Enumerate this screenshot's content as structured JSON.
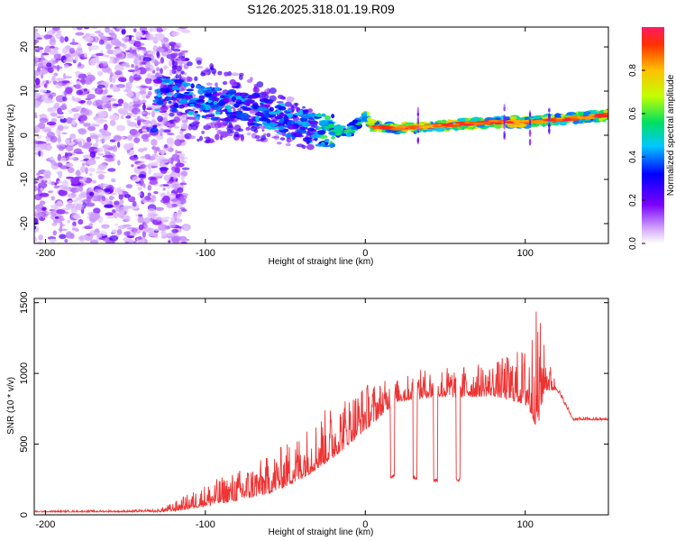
{
  "title": "S126.2025.318.01.19.R09",
  "colors": {
    "snr_line": "#ee3333",
    "frame": "#000000"
  },
  "chart_data": [
    {
      "type": "heatmap",
      "xlabel": "Height of straight line (km)",
      "ylabel": "Frequency (Hz)",
      "xlim": [
        -207,
        152
      ],
      "ylim": [
        -24.5,
        24.5
      ],
      "xticks": [
        -200,
        -100,
        0,
        100
      ],
      "yticks": [
        -20,
        -10,
        0,
        10,
        20
      ],
      "colorbar": {
        "label": "Normalized spectral amplitude",
        "range": [
          0,
          1
        ],
        "ticks": [
          "0.0",
          "0.2",
          "0.4",
          "0.6",
          "0.8"
        ],
        "tick_values": [
          0.0,
          0.2,
          0.4,
          0.6,
          0.8
        ]
      },
      "ridge": [
        {
          "x": -130,
          "y": 11
        },
        {
          "x": -110,
          "y": 8
        },
        {
          "x": -90,
          "y": 7
        },
        {
          "x": -70,
          "y": 6
        },
        {
          "x": -55,
          "y": 4
        },
        {
          "x": -40,
          "y": 2
        },
        {
          "x": -25,
          "y": 1
        },
        {
          "x": -10,
          "y": 1
        },
        {
          "x": 0,
          "y": 4
        },
        {
          "x": 5,
          "y": 2
        },
        {
          "x": 20,
          "y": 1.5
        },
        {
          "x": 40,
          "y": 2
        },
        {
          "x": 60,
          "y": 2.5
        },
        {
          "x": 80,
          "y": 3
        },
        {
          "x": 100,
          "y": 3
        },
        {
          "x": 120,
          "y": 3.5
        },
        {
          "x": 150,
          "y": 4.5
        }
      ]
    },
    {
      "type": "line",
      "xlabel": "Height of straight line (km)",
      "ylabel": "SNR (10 * v/v)",
      "xlim": [
        -207,
        152
      ],
      "ylim": [
        0,
        1530
      ],
      "xticks": [
        -200,
        -100,
        0,
        100
      ],
      "yticks": [
        0,
        500,
        1000,
        1500
      ],
      "envelope": {
        "x": [
          -207,
          -150,
          -130,
          -120,
          -100,
          -80,
          -60,
          -40,
          -20,
          0,
          20,
          40,
          60,
          80,
          100,
          108,
          112,
          120,
          130,
          152
        ],
        "base": [
          20,
          20,
          20,
          25,
          60,
          100,
          150,
          250,
          400,
          600,
          800,
          830,
          830,
          840,
          780,
          600,
          880,
          880,
          670,
          670
        ],
        "peak": [
          30,
          35,
          40,
          90,
          220,
          320,
          420,
          600,
          800,
          940,
          960,
          1050,
          1060,
          1080,
          1200,
          1500,
          1200,
          920,
          690,
          690
        ]
      },
      "dropouts": [
        {
          "x": 17,
          "value": 260
        },
        {
          "x": 31,
          "value": 250
        },
        {
          "x": 44,
          "value": 230
        },
        {
          "x": 58,
          "value": 230
        }
      ]
    }
  ]
}
